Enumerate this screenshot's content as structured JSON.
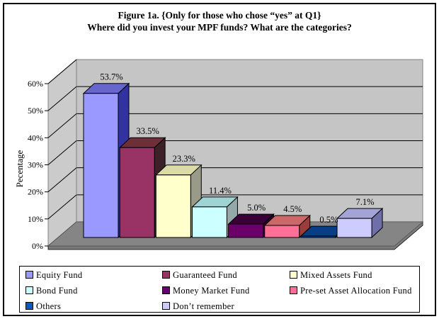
{
  "chart_data": {
    "type": "bar",
    "effect": "3d",
    "title_lines": [
      "Figure 1a. {Only for those who chose “yes” at Q1}",
      "Where did you invest your MPF funds? What are the categories?"
    ],
    "ylabel": "Pecentage",
    "ylim": [
      0,
      60
    ],
    "ytick_step": 10,
    "yticks": [
      "0%",
      "10%",
      "20%",
      "30%",
      "40%",
      "50%",
      "60%"
    ],
    "grid": true,
    "legend_position": "bottom",
    "categories": [
      "Equity Fund",
      "Guaranteed Fund",
      "Mixed Assets Fund",
      "Bond Fund",
      "Money Market Fund",
      "Pre-set Asset Allocation Fund",
      "Others",
      "Don’t remember"
    ],
    "values": [
      53.7,
      33.5,
      23.3,
      11.4,
      5.0,
      4.5,
      0.5,
      7.1
    ],
    "series": [
      {
        "name": "Equity Fund",
        "value": 53.7,
        "label": "53.7%",
        "front": "#9999FF",
        "top": "#6666CC",
        "side": "#3333A0"
      },
      {
        "name": "Guaranteed Fund",
        "value": 33.5,
        "label": "33.5%",
        "front": "#993366",
        "top": "#6E3038",
        "side": "#3C2228"
      },
      {
        "name": "Mixed Assets Fund",
        "value": 23.3,
        "label": "23.3%",
        "front": "#FFFFCC",
        "top": "#DBDBA8",
        "side": "#9A9A88"
      },
      {
        "name": "Bond Fund",
        "value": 11.4,
        "label": "11.4%",
        "front": "#CCFFFF",
        "top": "#9FD4D4",
        "side": "#94A8A8"
      },
      {
        "name": "Money Market Fund",
        "value": 5.0,
        "label": "5.0%",
        "front": "#6B006B",
        "top": "#3A0038",
        "side": "#2A0028"
      },
      {
        "name": "Pre-set Asset Allocation Fund",
        "value": 4.5,
        "label": "4.5%",
        "front": "#FF6F96",
        "top": "#CC6868",
        "side": "#9C3D3D"
      },
      {
        "name": "Others",
        "value": 0.5,
        "label": "0.5%",
        "front": "#0A58BC",
        "top": "#083E86",
        "side": "#062C60"
      },
      {
        "name": "Don’t remember",
        "value": 7.1,
        "label": "7.1%",
        "front": "#CCCCFF",
        "top": "#A3A3D6",
        "side": "#6E6EA8"
      }
    ],
    "wall_color": "#C5C5C5",
    "side_wall_color": "#CBCBCB",
    "floor_color": "#858585",
    "floor_edge_color": "#7B7B7B",
    "gridline_color": "#000000"
  },
  "legend": {
    "columns": [
      [
        0,
        3,
        6
      ],
      [
        1,
        4,
        7
      ],
      [
        2,
        5
      ]
    ]
  }
}
